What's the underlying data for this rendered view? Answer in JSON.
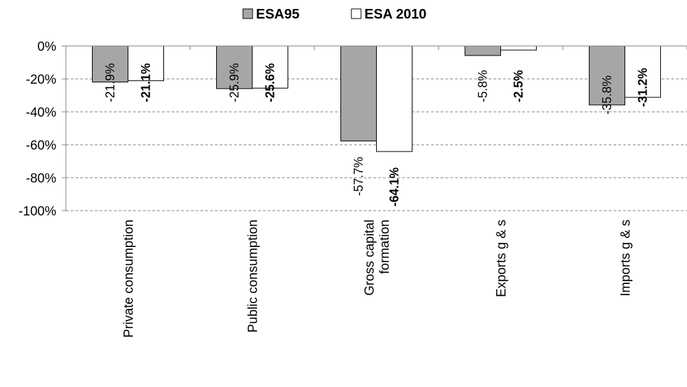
{
  "chart_data": {
    "type": "bar",
    "categories": [
      [
        "Private consumption"
      ],
      [
        "Public consumption"
      ],
      [
        "Gross capital",
        "formation"
      ],
      [
        "Exports g & s"
      ],
      [
        "Imports g & s"
      ]
    ],
    "series": [
      {
        "name": "ESA95",
        "values": [
          -21.9,
          -25.9,
          -57.7,
          -5.8,
          -35.8
        ],
        "labels": [
          "-21.9%",
          "-25.9%",
          "-57.7%",
          "-5.8%",
          "-35.8%"
        ],
        "color": "#a6a6a6",
        "label_bold": false
      },
      {
        "name": "ESA 2010",
        "values": [
          -21.1,
          -25.6,
          -64.1,
          -2.5,
          -31.2
        ],
        "labels": [
          "-21.1%",
          "-25.6%",
          "-64.1%",
          "-2.5%",
          "-31.2%"
        ],
        "color": "#ffffff",
        "label_bold": true
      }
    ],
    "y_ticks": [
      "0%",
      "-20%",
      "-40%",
      "-60%",
      "-80%",
      "-100%"
    ],
    "y_tick_values": [
      0,
      -20,
      -40,
      -60,
      -80,
      -100
    ],
    "ylim": [
      -100,
      0
    ],
    "grid": true,
    "legend_position": "top-center",
    "colors": {
      "grid": "#808080",
      "axis": "#808080",
      "bar_border": "#000000"
    }
  }
}
